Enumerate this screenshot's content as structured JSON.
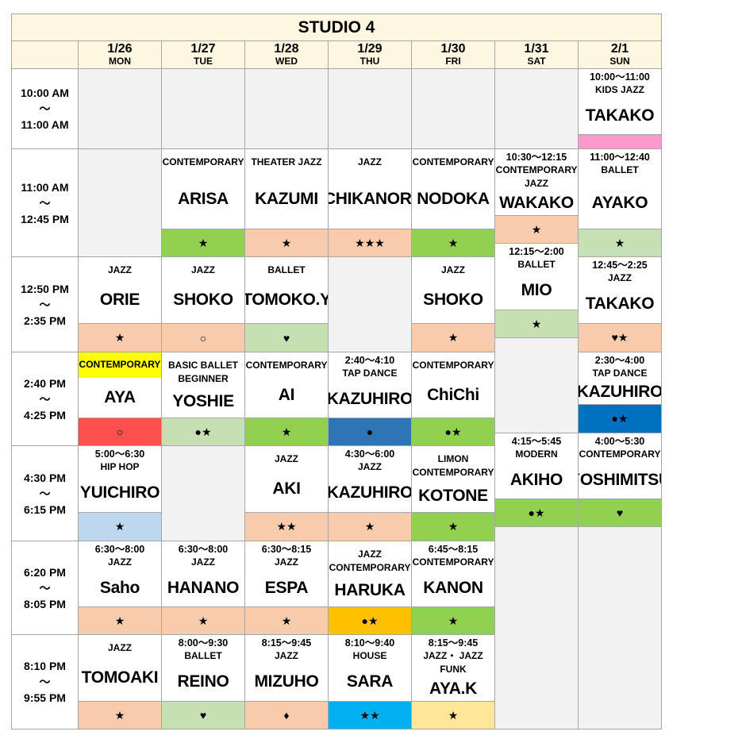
{
  "title": "STUDIO 4",
  "times": [
    {
      "start": "10:00 AM",
      "sep": "～",
      "end": "11:00 AM"
    },
    {
      "start": "11:00 AM",
      "sep": "～",
      "end": "12:45 PM"
    },
    {
      "start": "12:50 PM",
      "sep": "～",
      "end": "2:35 PM"
    },
    {
      "start": "2:40 PM",
      "sep": "～",
      "end": "4:25 PM"
    },
    {
      "start": "4:30 PM",
      "sep": "～",
      "end": "6:15 PM"
    },
    {
      "start": "6:20 PM",
      "sep": "～",
      "end": "8:05 PM"
    },
    {
      "start": "8:10 PM",
      "sep": "～",
      "end": "9:55 PM"
    }
  ],
  "days": [
    {
      "date": "1/26",
      "weekday": "MON",
      "classes": [
        {
          "genre": "JAZZ",
          "instructor": "ORIE",
          "level": "★",
          "color": "#f8cbad"
        },
        {
          "genre": "CONTEMPORARY",
          "instructor": "AYA",
          "level": "○",
          "color": "#ff5050",
          "highlight": "#ffff00"
        },
        {
          "time": "5:00～6:30",
          "genre": "HIP HOP",
          "instructor": "YUICHIRO",
          "level": "★",
          "color": "#bdd7ee"
        },
        {
          "time": "6:30～8:00",
          "genre": "JAZZ",
          "instructor": "Saho",
          "level": "★",
          "color": "#f8cbad"
        },
        {
          "genre": "JAZZ",
          "instructor": "TOMOAKI",
          "level": "★",
          "color": "#f8cbad"
        }
      ]
    },
    {
      "date": "1/27",
      "weekday": "TUE",
      "classes": [
        {
          "genre": "CONTEMPORARY",
          "instructor": "ARISA",
          "level": "★",
          "color": "#92d050"
        },
        {
          "genre": "JAZZ",
          "instructor": "SHOKO",
          "level": "○",
          "color": "#f8cbad"
        },
        {
          "genre": "BASIC BALLET BEGINNER",
          "instructor": "YOSHIE",
          "level": "●★",
          "color": "#c6e0b4"
        },
        {
          "time": "6:30～8:00",
          "genre": "JAZZ",
          "instructor": "HANANO",
          "level": "★",
          "color": "#f8cbad"
        },
        {
          "time": "8:00～9:30",
          "genre": "BALLET",
          "instructor": "REINO",
          "level": "♥",
          "color": "#c6e0b4"
        }
      ]
    },
    {
      "date": "1/28",
      "weekday": "WED",
      "classes": [
        {
          "genre": "THEATER JAZZ",
          "instructor": "KAZUMI",
          "level": "★",
          "color": "#f8cbad"
        },
        {
          "genre": "BALLET",
          "instructor": "TOMOKO.Y",
          "level": "♥",
          "color": "#c6e0b4"
        },
        {
          "genre": "CONTEMPORARY",
          "instructor": "AI",
          "level": "★",
          "color": "#92d050"
        },
        {
          "genre": "JAZZ",
          "instructor": "AKI",
          "level": "★★",
          "color": "#f8cbad"
        },
        {
          "time": "6:30～8:15",
          "genre": "JAZZ",
          "instructor": "ESPA",
          "level": "★",
          "color": "#f8cbad"
        },
        {
          "time": "8:15～9:45",
          "genre": "JAZZ",
          "instructor": "MIZUHO",
          "level": "♦",
          "color": "#f8cbad"
        }
      ]
    },
    {
      "date": "1/29",
      "weekday": "THU",
      "classes": [
        {
          "genre": "JAZZ",
          "instructor": "CHIKANORI",
          "level": "★★★",
          "color": "#f8cbad"
        },
        {
          "time": "2:40～4:10",
          "genre": "TAP DANCE",
          "instructor": "KAZUHIRO",
          "level": "●",
          "color": "#2e75b6"
        },
        {
          "time": "4:30～6:00",
          "genre": "JAZZ",
          "instructor": "KAZUHIRO",
          "level": "★",
          "color": "#f8cbad"
        },
        {
          "genre": "JAZZ CONTEMPORARY",
          "instructor": "HARUKA",
          "level": "●★",
          "color": "#ffc000"
        },
        {
          "time": "8:10～9:40",
          "genre": "HOUSE",
          "instructor": "SARA",
          "level": "★★",
          "color": "#00b0f0"
        }
      ]
    },
    {
      "date": "1/30",
      "weekday": "FRI",
      "classes": [
        {
          "genre": "CONTEMPORARY",
          "instructor": "NODOKA",
          "level": "★",
          "color": "#92d050"
        },
        {
          "genre": "JAZZ",
          "instructor": "SHOKO",
          "level": "★",
          "color": "#f8cbad"
        },
        {
          "genre": "CONTEMPORARY",
          "instructor": "ChiChi",
          "level": "●★",
          "color": "#92d050"
        },
        {
          "genre": "LIMON CONTEMPORARY",
          "instructor": "KOTONE",
          "level": "★",
          "color": "#92d050"
        },
        {
          "time": "6:45～8:15",
          "genre": "CONTEMPORARY",
          "instructor": "KANON",
          "level": "★",
          "color": "#92d050"
        },
        {
          "time": "8:15～9:45",
          "genre": "JAZZ・ JAZZ FUNK",
          "instructor": "AYA.K",
          "level": "★",
          "color": "#ffe699"
        }
      ]
    },
    {
      "date": "1/31",
      "weekday": "SAT",
      "classes": [
        {
          "time": "10:30～12:15",
          "genre": "CONTEMPORARY JAZZ",
          "instructor": "WAKAKO",
          "level": "★",
          "color": "#f8cbad"
        },
        {
          "time": "12:15～2:00",
          "genre": "BALLET",
          "instructor": "MIO",
          "level": "★",
          "color": "#c6e0b4"
        },
        {
          "time": "4:15～5:45",
          "genre": "MODERN",
          "instructor": "AKIHO",
          "level": "●★",
          "color": "#92d050"
        }
      ]
    },
    {
      "date": "2/1",
      "weekday": "SUN",
      "classes": [
        {
          "time": "10:00～11:00",
          "genre": "KIDS JAZZ",
          "instructor": "TAKAKO",
          "color": "#ff99cc"
        },
        {
          "time": "11:00～12:40",
          "genre": "BALLET",
          "instructor": "AYAKO",
          "level": "★",
          "color": "#c6e0b4"
        },
        {
          "time": "12:45～2:25",
          "genre": "JAZZ",
          "instructor": "TAKAKO",
          "level": "♥★",
          "color": "#f8cbad"
        },
        {
          "time": "2:30～4:00",
          "genre": "TAP DANCE",
          "instructor": "KAZUHIRO",
          "level": "●★",
          "color": "#0070c0"
        },
        {
          "time": "4:00～5:30",
          "genre": "CONTEMPORARY",
          "instructor": "YOSHIMITSU",
          "level": "♥",
          "color": "#92d050"
        }
      ]
    }
  ]
}
